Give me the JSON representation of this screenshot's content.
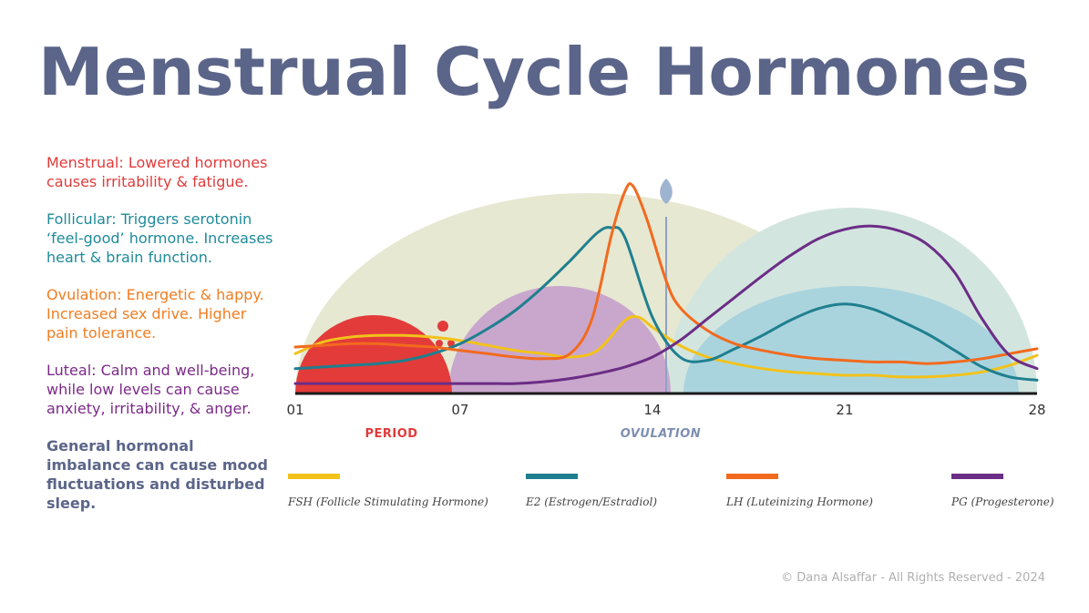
{
  "title": "Menstrual Cycle Hormones",
  "notes": [
    {
      "text": "Menstrual: Lowered hormones causes irritability & fatigue.",
      "color": "#e03b3b"
    },
    {
      "text": "Follicular: Triggers serotonin ‘feel-good’ hormone. Increases heart & brain function.",
      "color": "#1f8a99"
    },
    {
      "text": "Ovulation: Energetic & happy. Increased sex drive. Higher pain tolerance.",
      "color": "#f07d22"
    },
    {
      "text": "Luteal: Calm and well-being, while low levels can cause anxiety, irritability, & anger.",
      "color": "#7b2a88"
    },
    {
      "text": "General hormonal imbalance can cause mood fluctuations and disturbed sleep.",
      "color": "#5b6589"
    }
  ],
  "footer": {
    "copyright": "© Dana Alsaffar - All Rights Reserved - 2024"
  },
  "chart_data": {
    "type": "line",
    "x_range": [
      1,
      28
    ],
    "x_ticks": [
      "01",
      "07",
      "14",
      "21",
      "28"
    ],
    "x_tick_values": [
      1,
      7,
      14,
      21,
      28
    ],
    "phase_labels": [
      {
        "text": "PERIOD",
        "day": 4.5,
        "color": "#e03b3b"
      },
      {
        "text": "OVULATION",
        "day": 14.3,
        "color": "#7e8fb0"
      }
    ],
    "ovulation_day": 14,
    "series": [
      {
        "name": "FSH (Follicle Stimulating Hormone)",
        "color": "#f2c21b",
        "x": [
          1,
          2,
          3,
          4,
          5,
          6,
          7,
          8,
          9,
          10,
          11,
          12,
          13,
          13.5,
          14,
          15,
          16,
          17,
          18,
          19,
          20,
          21,
          22,
          23,
          24,
          25,
          26,
          27,
          28
        ],
        "y": [
          0.24,
          0.31,
          0.34,
          0.35,
          0.35,
          0.34,
          0.32,
          0.29,
          0.26,
          0.24,
          0.22,
          0.26,
          0.44,
          0.46,
          0.4,
          0.29,
          0.22,
          0.18,
          0.15,
          0.13,
          0.12,
          0.11,
          0.11,
          0.1,
          0.1,
          0.11,
          0.13,
          0.17,
          0.23
        ]
      },
      {
        "name": "E2 (Estrogen/Estradiol)",
        "color": "#1f7f8f",
        "x": [
          1,
          2,
          3,
          4,
          5,
          6,
          7,
          8,
          9,
          10,
          11,
          12,
          12.5,
          13,
          14,
          15,
          16,
          17,
          18,
          19,
          20,
          21,
          22,
          23,
          24,
          25,
          26,
          27,
          28
        ],
        "y": [
          0.15,
          0.16,
          0.17,
          0.18,
          0.2,
          0.24,
          0.3,
          0.39,
          0.5,
          0.64,
          0.8,
          0.97,
          1.0,
          0.94,
          0.46,
          0.22,
          0.2,
          0.27,
          0.35,
          0.44,
          0.51,
          0.54,
          0.51,
          0.44,
          0.36,
          0.26,
          0.16,
          0.1,
          0.08
        ]
      },
      {
        "name": "LH (Luteinizing Hormone)",
        "color": "#f26a1e",
        "x": [
          1,
          2,
          3,
          4,
          5,
          6,
          7,
          8,
          9,
          10,
          11,
          11.8,
          12.5,
          13,
          13.3,
          13.8,
          14.5,
          15,
          16,
          17,
          18,
          19,
          20,
          21,
          22,
          23,
          24,
          25,
          26,
          27,
          28
        ],
        "y": [
          0.28,
          0.29,
          0.3,
          0.3,
          0.29,
          0.28,
          0.26,
          0.24,
          0.22,
          0.21,
          0.24,
          0.45,
          0.95,
          1.22,
          1.25,
          1.05,
          0.68,
          0.52,
          0.38,
          0.3,
          0.26,
          0.23,
          0.21,
          0.2,
          0.19,
          0.19,
          0.18,
          0.19,
          0.21,
          0.24,
          0.27
        ]
      },
      {
        "name": "PG (Progesterone)",
        "color": "#6b2d86",
        "x": [
          1,
          2,
          3,
          4,
          5,
          6,
          7,
          8,
          9,
          10,
          11,
          12,
          13,
          14,
          15,
          16,
          17,
          18,
          19,
          20,
          21,
          22,
          23,
          24,
          25,
          26,
          27,
          28
        ],
        "y": [
          0.06,
          0.06,
          0.06,
          0.06,
          0.06,
          0.06,
          0.06,
          0.06,
          0.06,
          0.07,
          0.09,
          0.12,
          0.16,
          0.22,
          0.32,
          0.45,
          0.58,
          0.71,
          0.83,
          0.93,
          0.99,
          1.01,
          0.98,
          0.9,
          0.73,
          0.45,
          0.23,
          0.15
        ]
      }
    ]
  }
}
